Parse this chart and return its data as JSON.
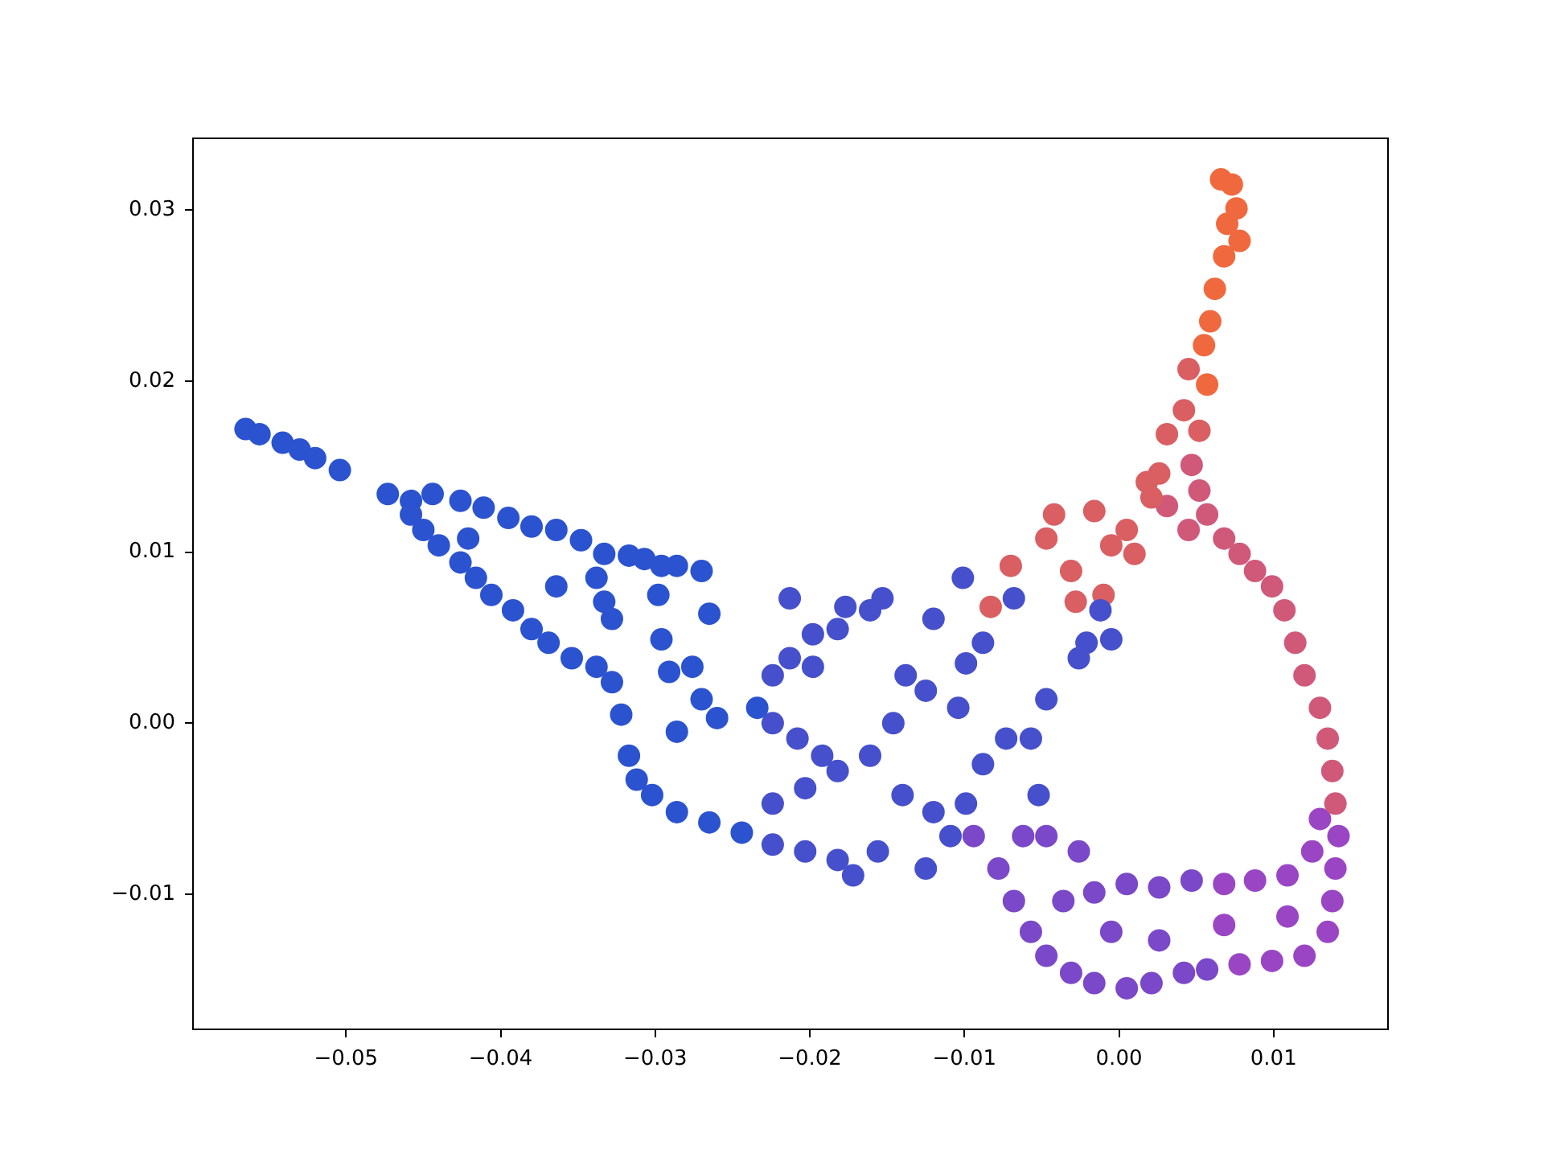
{
  "chart_data": {
    "type": "scatter",
    "marker": "circle",
    "legend": false,
    "grid": false,
    "xlim": [
      -0.0599,
      0.0174
    ],
    "ylim": [
      -0.0179,
      0.0342
    ],
    "xticks": [
      {
        "value": -0.05,
        "label": "−0.05"
      },
      {
        "value": -0.04,
        "label": "−0.04"
      },
      {
        "value": -0.03,
        "label": "−0.03"
      },
      {
        "value": -0.02,
        "label": "−0.02"
      },
      {
        "value": -0.01,
        "label": "−0.01"
      },
      {
        "value": 0,
        "label": "0.00"
      },
      {
        "value": 0.01,
        "label": "0.01"
      }
    ],
    "yticks": [
      {
        "value": -0.01,
        "label": "−0.01"
      },
      {
        "value": 0,
        "label": "0.00"
      },
      {
        "value": 0.01,
        "label": "0.01"
      },
      {
        "value": 0.02,
        "label": "0.02"
      },
      {
        "value": 0.03,
        "label": "0.03"
      }
    ],
    "series": [
      {
        "color": "#2b53d0",
        "x": [
          -0.0565,
          -0.0556,
          -0.0541,
          -0.053,
          -0.052,
          -0.0504,
          -0.0473,
          -0.0458,
          -0.0444,
          -0.0426,
          -0.0411,
          -0.0395,
          -0.038,
          -0.0364,
          -0.0348,
          -0.0333,
          -0.0317,
          -0.0307,
          -0.0296,
          -0.0286,
          -0.027,
          -0.0458,
          -0.045,
          -0.044,
          -0.0426,
          -0.0416,
          -0.0406,
          -0.0392,
          -0.038,
          -0.0369,
          -0.0354,
          -0.0338,
          -0.0328,
          -0.0322,
          -0.0317,
          -0.0312,
          -0.0302,
          -0.0286,
          -0.0265,
          -0.0244,
          -0.0421,
          -0.0364,
          -0.0338,
          -0.0333,
          -0.0328,
          -0.0298,
          -0.0296,
          -0.0265,
          -0.0291,
          -0.0276,
          -0.027,
          -0.0286,
          -0.026,
          -0.0234
        ],
        "values": [
          0.0172,
          0.0169,
          0.0164,
          0.016,
          0.0155,
          0.0148,
          0.0134,
          0.013,
          0.0134,
          0.013,
          0.0126,
          0.012,
          0.0115,
          0.0113,
          0.0107,
          0.0099,
          0.0098,
          0.0096,
          0.0092,
          0.0092,
          0.0089,
          0.0122,
          0.0113,
          0.0104,
          0.0094,
          0.0085,
          0.0075,
          0.0066,
          0.0055,
          0.0047,
          0.0038,
          0.0033,
          0.0024,
          0.0005,
          -0.0019,
          -0.0033,
          -0.0042,
          -0.0052,
          -0.0058,
          -0.0064,
          0.0108,
          0.008,
          0.0085,
          0.0071,
          0.0061,
          0.0075,
          0.0049,
          0.0064,
          0.003,
          0.0033,
          0.0014,
          -0.0005,
          0.0003,
          0.0009
        ]
      },
      {
        "color": "#4650cc",
        "x": [
          -0.0224,
          -0.0203,
          -0.0182,
          -0.0172,
          -0.0156,
          -0.0224,
          -0.0213,
          -0.0198,
          -0.0182,
          -0.0177,
          -0.0161,
          -0.0198,
          -0.0224,
          -0.0208,
          -0.0192,
          -0.0203,
          -0.0224,
          -0.0182,
          -0.0161,
          -0.0146,
          -0.0125,
          -0.014,
          -0.012,
          -0.0099,
          -0.0088,
          -0.0109,
          -0.0125,
          -0.0099,
          -0.0088,
          -0.012,
          -0.0101,
          -0.0153,
          -0.0213,
          -0.0138,
          -0.0104,
          -0.0068,
          -0.0012,
          -0.0005,
          -0.0021,
          -0.0026,
          -0.0047,
          -0.0057,
          -0.0052,
          -0.0073
        ],
        "values": [
          -0.0071,
          -0.0075,
          -0.008,
          -0.0089,
          -0.0075,
          0.0028,
          0.0038,
          0.0052,
          0.0055,
          0.0068,
          0.0066,
          0.0033,
          0,
          -0.0009,
          -0.0019,
          -0.0038,
          -0.0047,
          -0.0028,
          -0.0019,
          0,
          0.0019,
          -0.0042,
          -0.0052,
          -0.0047,
          -0.0024,
          -0.0066,
          -0.0085,
          0.0035,
          0.0047,
          0.0061,
          0.0085,
          0.0073,
          0.0073,
          0.0028,
          0.0009,
          0.0073,
          0.0066,
          0.0049,
          0.0047,
          0.0038,
          0.0014,
          -0.0009,
          -0.0042,
          -0.0009
        ]
      },
      {
        "color": "#d95f62",
        "x": [
          -0.0083,
          -0.007,
          -0.0047,
          -0.0042,
          -0.0031,
          -0.0028,
          -0.001,
          -0.0005,
          0.0005,
          0.001,
          0.0021,
          0.0026,
          0.0031,
          0.0042,
          -0.0016,
          0.0018,
          0.0045,
          0.0052
        ],
        "values": [
          0.0068,
          0.0092,
          0.0108,
          0.0122,
          0.0089,
          0.0071,
          0.0075,
          0.0104,
          0.0113,
          0.0099,
          0.0132,
          0.0146,
          0.0169,
          0.0183,
          0.0124,
          0.0141,
          0.0207,
          0.0171
        ]
      },
      {
        "color": "#f0693e",
        "x": [
          0.0055,
          0.0059,
          0.0062,
          0.0068,
          0.007,
          0.0073,
          0.0066,
          0.0076,
          0.0078,
          0.0057
        ],
        "values": [
          0.0221,
          0.0235,
          0.0254,
          0.0273,
          0.0292,
          0.0315,
          0.0318,
          0.0301,
          0.0282,
          0.0198
        ]
      },
      {
        "color": "#d0597a",
        "x": [
          0.0047,
          0.0052,
          0.0057,
          0.0068,
          0.0078,
          0.0088,
          0.0099,
          0.0107,
          0.0114,
          0.012,
          0.013,
          0.0135,
          0.0138,
          0.014,
          0.0031,
          0.0045
        ],
        "values": [
          0.0151,
          0.0136,
          0.0122,
          0.0108,
          0.0099,
          0.0089,
          0.008,
          0.0066,
          0.0047,
          0.0028,
          0.0009,
          -0.0009,
          -0.0028,
          -0.0047,
          0.0127,
          0.0113
        ]
      },
      {
        "color": "#9a46c4",
        "x": [
          0.0142,
          0.014,
          0.0138,
          0.0135,
          0.012,
          0.0099,
          0.0109,
          0.0125,
          0.013,
          0.0109,
          0.0088,
          0.0068,
          0.0078,
          0.0068
        ],
        "values": [
          -0.0066,
          -0.0085,
          -0.0104,
          -0.0122,
          -0.0136,
          -0.0139,
          -0.0113,
          -0.0075,
          -0.0056,
          -0.0089,
          -0.0092,
          -0.0094,
          -0.0141,
          -0.0118
        ]
      },
      {
        "color": "#7a48c8",
        "x": [
          -0.0094,
          -0.0078,
          -0.0068,
          -0.0057,
          -0.0047,
          -0.0031,
          -0.0016,
          0.0005,
          0.0021,
          0.0042,
          0.0057,
          -0.0036,
          -0.0016,
          0.0005,
          0.0026,
          0.0047,
          -0.0005,
          0.0026,
          -0.0026,
          -0.0047,
          -0.0062
        ],
        "values": [
          -0.0066,
          -0.0085,
          -0.0104,
          -0.0122,
          -0.0136,
          -0.0146,
          -0.0152,
          -0.0155,
          -0.0152,
          -0.0146,
          -0.0144,
          -0.0104,
          -0.0099,
          -0.0094,
          -0.0096,
          -0.0092,
          -0.0122,
          -0.0127,
          -0.0075,
          -0.0066,
          -0.0066
        ]
      }
    ]
  }
}
